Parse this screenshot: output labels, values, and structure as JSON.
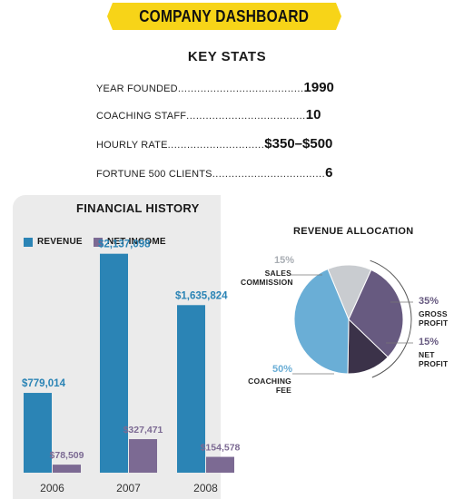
{
  "banner": {
    "title": "COMPANY DASHBOARD"
  },
  "key_stats": {
    "title": "KEY STATS",
    "rows": [
      {
        "label": "YEAR FOUNDED",
        "value": "1990"
      },
      {
        "label": "COACHING STAFF",
        "value": "10"
      },
      {
        "label": "HOURLY RATE",
        "value": "$350–$500"
      },
      {
        "label": "FORTUNE 500 CLIENTS",
        "value": "6"
      }
    ]
  },
  "colors": {
    "banner": "#f7d418",
    "revenue": "#2b84b5",
    "net_income": "#7c6a93",
    "panel": "#ebebeb"
  },
  "chart_data": [
    {
      "type": "bar",
      "title": "FINANCIAL HISTORY",
      "categories": [
        "2006",
        "2007",
        "2008"
      ],
      "series": [
        {
          "name": "REVENUE",
          "values": [
            779014,
            2137098,
            1635824
          ],
          "labels": [
            "$779,014",
            "$2,137,098",
            "$1,635,824"
          ],
          "color": "#2b84b5"
        },
        {
          "name": "NET INCOME",
          "values": [
            78509,
            327471,
            154578
          ],
          "labels": [
            "$78,509",
            "$327,471",
            "$154,578"
          ],
          "color": "#7c6a93"
        }
      ],
      "ylim": [
        0,
        2400000
      ],
      "legend": "top-left",
      "grid": false
    },
    {
      "type": "pie",
      "title": "REVENUE ALLOCATION",
      "slices": [
        {
          "name": "SALES COMMISSION",
          "name_lines": [
            "SALES",
            "COMMISSION"
          ],
          "value": 15,
          "label": "15%",
          "color": "#c9ccd0"
        },
        {
          "name": "GROSS PROFIT",
          "name_lines": [
            "GROSS",
            "PROFIT"
          ],
          "value": 35,
          "label": "35%",
          "color": "#675a80"
        },
        {
          "name": "NET PROFIT",
          "name_lines": [
            "NET",
            "PROFIT"
          ],
          "value": 15,
          "label": "15%",
          "color": "#3b3249"
        },
        {
          "name": "COACHING FEE",
          "name_lines": [
            "COACHING",
            "FEE"
          ],
          "value": 50,
          "label": "50%",
          "color": "#6aaed6"
        }
      ]
    }
  ]
}
